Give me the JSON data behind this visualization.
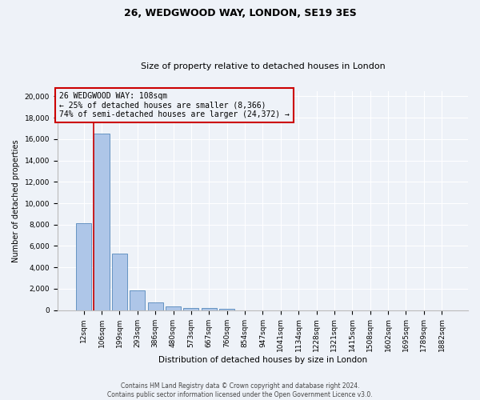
{
  "title": "26, WEDGWOOD WAY, LONDON, SE19 3ES",
  "subtitle": "Size of property relative to detached houses in London",
  "xlabel": "Distribution of detached houses by size in London",
  "ylabel": "Number of detached properties",
  "footer_line1": "Contains HM Land Registry data © Crown copyright and database right 2024.",
  "footer_line2": "Contains public sector information licensed under the Open Government Licence v3.0.",
  "bar_labels": [
    "12sqm",
    "106sqm",
    "199sqm",
    "293sqm",
    "386sqm",
    "480sqm",
    "573sqm",
    "667sqm",
    "760sqm",
    "854sqm",
    "947sqm",
    "1041sqm",
    "1134sqm",
    "1228sqm",
    "1321sqm",
    "1415sqm",
    "1508sqm",
    "1602sqm",
    "1695sqm",
    "1789sqm",
    "1882sqm"
  ],
  "bar_heights": [
    8100,
    16550,
    5300,
    1850,
    700,
    320,
    200,
    170,
    130,
    0,
    0,
    0,
    0,
    0,
    0,
    0,
    0,
    0,
    0,
    0,
    0
  ],
  "bar_color": "#aec6e8",
  "bar_edge_color": "#5588bb",
  "annotation_line1": "26 WEDGWOOD WAY: 108sqm",
  "annotation_line2": "← 25% of detached houses are smaller (8,366)",
  "annotation_line3": "74% of semi-detached houses are larger (24,372) →",
  "ylim": [
    0,
    20500
  ],
  "yticks": [
    0,
    2000,
    4000,
    6000,
    8000,
    10000,
    12000,
    14000,
    16000,
    18000,
    20000
  ],
  "background_color": "#eef2f8",
  "grid_color": "#ffffff",
  "red_line_color": "#cc0000",
  "box_edge_color": "#cc0000",
  "title_fontsize": 9,
  "subtitle_fontsize": 8,
  "ylabel_fontsize": 7,
  "xlabel_fontsize": 7.5,
  "tick_fontsize": 6.5,
  "annotation_fontsize": 7,
  "footer_fontsize": 5.5
}
